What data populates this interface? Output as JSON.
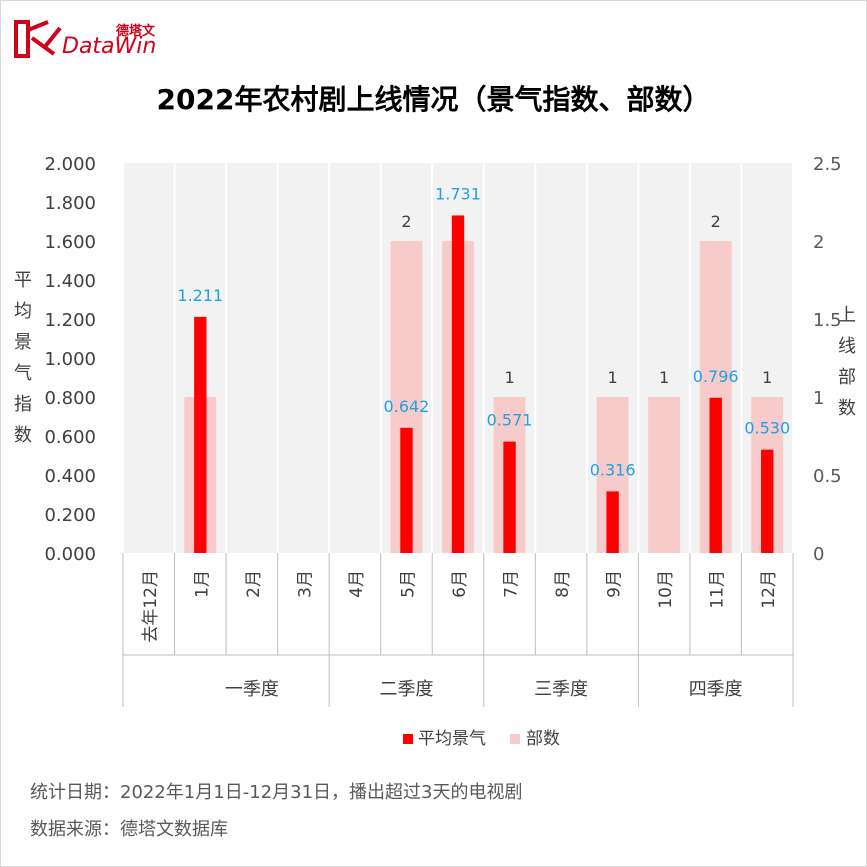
{
  "brand": {
    "name_cn": "德塔文",
    "name_en": "DataWin"
  },
  "chart_data": {
    "type": "bar",
    "title": "2022年农村剧上线情况（景气指数、部数）",
    "categories": [
      "去年12月",
      "1月",
      "2月",
      "3月",
      "4月",
      "5月",
      "6月",
      "7月",
      "8月",
      "9月",
      "10月",
      "11月",
      "12月"
    ],
    "quarters": [
      {
        "label": "一季度",
        "span": [
          1,
          3
        ]
      },
      {
        "label": "二季度",
        "span": [
          4,
          6
        ]
      },
      {
        "label": "三季度",
        "span": [
          7,
          9
        ]
      },
      {
        "label": "四季度",
        "span": [
          10,
          12
        ]
      }
    ],
    "series": [
      {
        "name": "平均景气",
        "axis": "left",
        "color": "#ff0000",
        "values": [
          null,
          1.211,
          null,
          null,
          null,
          0.642,
          1.731,
          0.571,
          null,
          0.316,
          null,
          0.796,
          0.53
        ],
        "labels": [
          "",
          "1.211",
          "",
          "",
          "",
          "0.642",
          "1.731",
          "0.571",
          "",
          "0.316",
          "",
          "0.796",
          "0.530"
        ]
      },
      {
        "name": "部数",
        "axis": "right",
        "color": "#f8cbcb",
        "values": [
          null,
          1,
          null,
          null,
          null,
          2,
          2,
          1,
          null,
          1,
          1,
          2,
          1
        ],
        "labels": [
          "",
          "1",
          "",
          "",
          "",
          "2",
          "2",
          "1",
          "",
          "1",
          "1",
          "2",
          "1"
        ]
      }
    ],
    "ylabel": "平均景气指数",
    "y2label": "上线部数",
    "ylim": [
      0,
      2
    ],
    "yticks": [
      "0.000",
      "0.200",
      "0.400",
      "0.600",
      "0.800",
      "1.000",
      "1.200",
      "1.400",
      "1.600",
      "1.800",
      "2.000"
    ],
    "y2lim": [
      0,
      2.5
    ],
    "y2ticks": [
      "0",
      "0.5",
      "1",
      "1.5",
      "2",
      "2.5"
    ],
    "grid": true,
    "legend": "bottom"
  },
  "notes": {
    "stat_date": "统计日期：2022年1月1日-12月31日，播出超过3天的电视剧",
    "source": "数据来源：德塔文数据库"
  }
}
